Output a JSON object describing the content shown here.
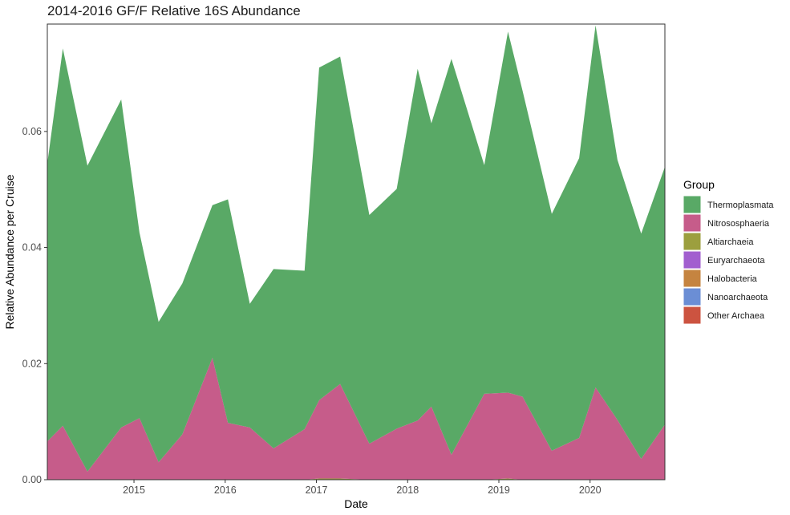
{
  "chart_data": {
    "type": "area",
    "stacked": true,
    "title": "2014-2016 GF/F Relative 16S Abundance",
    "xlabel": "Date",
    "ylabel": "Relative Abundance per Cruise",
    "xlim": [
      2014.05,
      2020.82
    ],
    "ylim": [
      0,
      0.0785
    ],
    "x_ticks": [
      {
        "value": 2015,
        "label": "2015"
      },
      {
        "value": 2016,
        "label": "2016"
      },
      {
        "value": 2017,
        "label": "2017"
      },
      {
        "value": 2018,
        "label": "2018"
      },
      {
        "value": 2019,
        "label": "2019"
      },
      {
        "value": 2020,
        "label": "2020"
      }
    ],
    "y_ticks": [
      {
        "value": 0.0,
        "label": "0.00"
      },
      {
        "value": 0.02,
        "label": "0.02"
      },
      {
        "value": 0.04,
        "label": "0.04"
      },
      {
        "value": 0.06,
        "label": "0.06"
      }
    ],
    "grid": false,
    "legend": {
      "title": "Group",
      "position": "right"
    },
    "x": [
      2014.05,
      2014.22,
      2014.49,
      2014.86,
      2015.06,
      2015.27,
      2015.53,
      2015.86,
      2016.03,
      2016.27,
      2016.53,
      2016.87,
      2017.03,
      2017.26,
      2017.58,
      2017.88,
      2018.11,
      2018.26,
      2018.48,
      2018.84,
      2019.1,
      2019.26,
      2019.58,
      2019.88,
      2020.06,
      2020.3,
      2020.56,
      2020.82
    ],
    "series": [
      {
        "name": "Other Archaea",
        "color": "#CC5340",
        "values": [
          0,
          0,
          0,
          0,
          0,
          0,
          0,
          0,
          0,
          0,
          0,
          0,
          0,
          0,
          0,
          0,
          0,
          0,
          0,
          0,
          0,
          0,
          0,
          0,
          0,
          0,
          0,
          0
        ]
      },
      {
        "name": "Nanoarchaeota",
        "color": "#6B8ED5",
        "values": [
          0,
          0,
          0,
          0,
          0,
          0,
          0,
          0,
          0,
          0,
          0,
          0,
          0,
          0,
          0,
          0,
          0,
          0,
          0,
          0,
          0,
          0,
          0,
          0,
          0,
          0,
          0,
          0
        ]
      },
      {
        "name": "Halobacteria",
        "color": "#C58440",
        "values": [
          0,
          0,
          0,
          0,
          0,
          0,
          0,
          0,
          0,
          0,
          0,
          0,
          0,
          0,
          0,
          0,
          0,
          0,
          0,
          0,
          0,
          0,
          0,
          0,
          0,
          0,
          0,
          0
        ]
      },
      {
        "name": "Euryarchaeota",
        "color": "#A25FCF",
        "values": [
          0,
          0,
          0,
          0,
          0,
          0,
          0,
          0,
          0,
          0,
          0,
          0,
          0,
          0,
          0,
          0,
          0,
          0,
          0,
          0,
          0,
          0,
          0,
          0,
          0,
          0,
          0,
          0
        ]
      },
      {
        "name": "Altiarchaeia",
        "color": "#9C9F3E",
        "values": [
          0,
          0,
          0,
          0,
          0,
          0,
          0,
          0,
          0,
          0,
          0,
          0,
          0.0002,
          0.0002,
          0,
          0,
          0,
          0,
          0,
          0,
          0.0002,
          0,
          0,
          0,
          0,
          0,
          0,
          0
        ]
      },
      {
        "name": "Nitrososphaeria",
        "color": "#C65C8A",
        "values": [
          0.0066,
          0.0093,
          0.0014,
          0.009,
          0.0106,
          0.003,
          0.0078,
          0.021,
          0.0098,
          0.009,
          0.0054,
          0.0087,
          0.0135,
          0.0163,
          0.0062,
          0.0088,
          0.0102,
          0.0126,
          0.0043,
          0.0148,
          0.0148,
          0.0143,
          0.005,
          0.0072,
          0.0159,
          0.0103,
          0.0036,
          0.0095
        ]
      },
      {
        "name": "Thermoplasmata",
        "color": "#59A966",
        "values": [
          0.0479,
          0.065,
          0.0527,
          0.0565,
          0.032,
          0.0242,
          0.026,
          0.0263,
          0.0385,
          0.0213,
          0.0309,
          0.0273,
          0.0573,
          0.0564,
          0.0394,
          0.0413,
          0.0606,
          0.0488,
          0.0682,
          0.0394,
          0.0622,
          0.0527,
          0.0408,
          0.0482,
          0.0624,
          0.0448,
          0.0388,
          0.0444
        ]
      }
    ],
    "legend_order": [
      "Thermoplasmata",
      "Nitrososphaeria",
      "Altiarchaeia",
      "Euryarchaeota",
      "Halobacteria",
      "Nanoarchaeota",
      "Other Archaea"
    ]
  }
}
